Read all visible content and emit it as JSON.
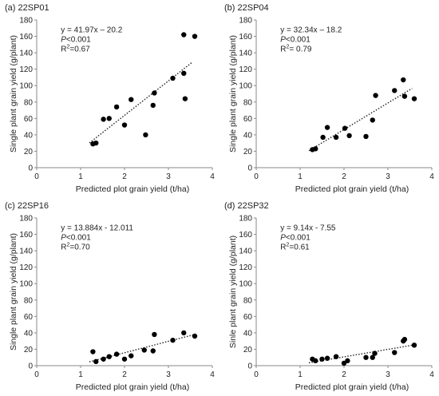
{
  "chart_data": [
    {
      "type": "scatter",
      "title": "(a) 22SP01",
      "xlabel": "Predicted plot grain yield (t/ha)",
      "ylabel": "Single plant grain yield (g/plant)",
      "xlim": [
        0,
        4
      ],
      "ylim": [
        0,
        180
      ],
      "xticks": [
        "0",
        "1",
        "2",
        "3",
        "4"
      ],
      "yticks": [
        "0",
        "20",
        "40",
        "60",
        "80",
        "100",
        "120",
        "140",
        "160",
        "180"
      ],
      "grid": false,
      "annotation": {
        "equation": "y = 41.97x – 20.2",
        "p_prefix": "P",
        "p_value": "<0.001",
        "r2_prefix": "R",
        "r2_exp": "2",
        "r2_value": "=0.67"
      },
      "trendline": {
        "slope": 41.97,
        "intercept": -20.2,
        "x_range": [
          1.2,
          3.55
        ]
      },
      "x": [
        1.28,
        1.35,
        1.52,
        1.65,
        1.82,
        2.0,
        2.15,
        2.48,
        2.65,
        2.68,
        3.1,
        3.35,
        3.35,
        3.38,
        3.6
      ],
      "y": [
        29,
        30,
        59,
        60,
        74,
        52,
        83,
        40,
        76,
        91,
        109,
        115,
        162,
        84,
        160
      ]
    },
    {
      "type": "scatter",
      "title": "(b) 22SP04",
      "xlabel": "Predicted plot grain yield (t/ha)",
      "ylabel": "Single plant grain yield (g/plant)",
      "xlim": [
        0,
        4
      ],
      "ylim": [
        0,
        180
      ],
      "xticks": [
        "0",
        "1",
        "2",
        "3",
        "4"
      ],
      "yticks": [
        "0",
        "20",
        "40",
        "60",
        "80",
        "100",
        "120",
        "140",
        "160",
        "180"
      ],
      "grid": false,
      "annotation": {
        "equation": "y = 32.34x – 18.2",
        "p_prefix": "P",
        "p_value": "<0.001",
        "r2_prefix": "R",
        "r2_exp": "2",
        "r2_value": "= 0.79"
      },
      "trendline": {
        "slope": 32.34,
        "intercept": -18.2,
        "x_range": [
          1.2,
          3.55
        ]
      },
      "x": [
        1.28,
        1.35,
        1.52,
        1.62,
        1.82,
        2.02,
        2.12,
        2.5,
        2.65,
        2.72,
        3.15,
        3.35,
        3.38,
        3.6
      ],
      "y": [
        22,
        23,
        37,
        49,
        37,
        48,
        39,
        38,
        58,
        88,
        94,
        107,
        87,
        84
      ]
    },
    {
      "type": "scatter",
      "title": "(c) 22SP16",
      "xlabel": "Predicted plot grain yield (t/ha)",
      "ylabel": "Single plant grain yield (g/plant)",
      "xlim": [
        0,
        4
      ],
      "ylim": [
        0,
        180
      ],
      "xticks": [
        "0",
        "1",
        "2",
        "3",
        "4"
      ],
      "yticks": [
        "0",
        "20",
        "40",
        "60",
        "80",
        "100",
        "120",
        "140",
        "160",
        "180"
      ],
      "grid": false,
      "annotation": {
        "equation": "y = 13.884x - 12.011",
        "p_prefix": "P",
        "p_value": "<0.001",
        "r2_prefix": "R",
        "r2_exp": "2",
        "r2_value": "=0.70"
      },
      "trendline": {
        "slope": 13.884,
        "intercept": -12.011,
        "x_range": [
          1.2,
          3.6
        ]
      },
      "x": [
        1.28,
        1.35,
        1.52,
        1.65,
        1.82,
        2.0,
        2.15,
        2.45,
        2.65,
        2.68,
        3.1,
        3.35,
        3.6
      ],
      "y": [
        17,
        5,
        8,
        11,
        14,
        8,
        12,
        19,
        18,
        38,
        31,
        40,
        36
      ]
    },
    {
      "type": "scatter",
      "title": "(d) 22SP32",
      "xlabel": "Predicted plot grain yield (t/ha)",
      "ylabel": "Sinle plant grain yield (g/plant)",
      "xlim": [
        0,
        4
      ],
      "ylim": [
        0,
        180
      ],
      "xticks": [
        "0",
        "1",
        "2",
        "3",
        "4"
      ],
      "yticks": [
        "0",
        "20",
        "40",
        "60",
        "80",
        "100",
        "120",
        "140",
        "160",
        "180"
      ],
      "grid": false,
      "annotation": {
        "equation": "y = 9.14x - 7.55",
        "p_prefix": "P",
        "p_value": "<0.001",
        "r2_prefix": "R",
        "r2_exp": "2",
        "r2_value": "=0.61"
      },
      "trendline": {
        "slope": 9.14,
        "intercept": -7.55,
        "x_range": [
          1.2,
          3.6
        ]
      },
      "x": [
        1.28,
        1.35,
        1.5,
        1.62,
        1.82,
        2.0,
        2.08,
        2.5,
        2.65,
        2.7,
        3.15,
        3.35,
        3.38,
        3.6
      ],
      "y": [
        8,
        6,
        8,
        9,
        11,
        3,
        6,
        10,
        10,
        15,
        16,
        30,
        32,
        25
      ]
    }
  ]
}
